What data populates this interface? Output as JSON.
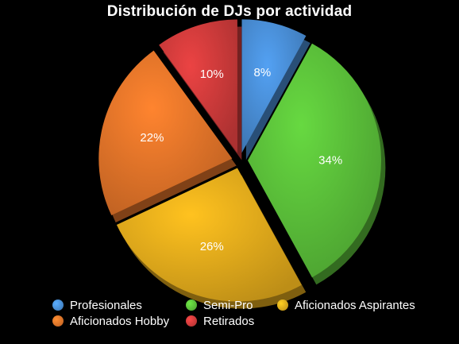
{
  "chart_data": {
    "type": "pie",
    "title": "Distribución de DJs por actividad",
    "slices": [
      {
        "name": "Profesionales",
        "value": 8,
        "label": "8%",
        "color": "#4a90d9"
      },
      {
        "name": "Semi-Pro",
        "value": 34,
        "label": "34%",
        "color": "#5cc23a"
      },
      {
        "name": "Aficionados Aspirantes",
        "value": 26,
        "label": "26%",
        "color": "#e6ad1c"
      },
      {
        "name": "Aficionados Hobby",
        "value": 22,
        "label": "22%",
        "color": "#e8762a"
      },
      {
        "name": "Retirados",
        "value": 10,
        "label": "10%",
        "color": "#d23c3c"
      }
    ],
    "legend_position": "bottom",
    "exploded": true
  }
}
